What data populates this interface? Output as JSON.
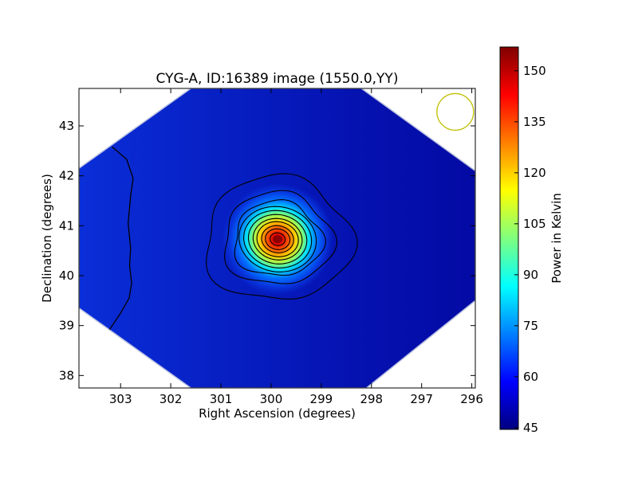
{
  "chart_data": {
    "type": "heatmap",
    "title": "CYG-A, ID:16389 image (1550.0,YY)",
    "xlabel": "Right Ascension (degrees)",
    "ylabel": "Declination (degrees)",
    "xlim": [
      303.83,
      295.93
    ],
    "ylim": [
      37.75,
      43.75
    ],
    "x_ticks": [
      "303",
      "302",
      "301",
      "300",
      "299",
      "298",
      "297",
      "296"
    ],
    "y_ticks": [
      "38",
      "39",
      "40",
      "41",
      "42",
      "43"
    ],
    "colorbar": {
      "label": "Power in Kelvin",
      "range": [
        44.5,
        157
      ],
      "ticks": [
        "45",
        "60",
        "75",
        "90",
        "105",
        "120",
        "135",
        "150"
      ],
      "colormap": "jet"
    },
    "footprint_vertices_deg": [
      [
        301.6,
        43.75
      ],
      [
        298.2,
        43.75
      ],
      [
        295.93,
        42.1
      ],
      [
        295.93,
        39.5
      ],
      [
        298.1,
        37.75
      ],
      [
        301.6,
        37.75
      ],
      [
        303.83,
        39.35
      ],
      [
        303.83,
        42.15
      ]
    ],
    "source": {
      "ra": 299.87,
      "dec": 40.73,
      "peak_kelvin": 157
    },
    "background_kelvin": 48,
    "contour_count": 12,
    "beam": {
      "ra": 296.33,
      "dec": 43.28,
      "color": "#bfbf00"
    },
    "edge_contour_deg": [
      [
        303.17,
        42.58
      ],
      [
        302.88,
        42.33
      ],
      [
        302.75,
        41.95
      ],
      [
        302.8,
        41.6
      ],
      [
        302.85,
        41.05
      ],
      [
        302.8,
        40.55
      ],
      [
        302.82,
        40.2
      ],
      [
        302.78,
        39.85
      ],
      [
        302.83,
        39.55
      ],
      [
        303.0,
        39.25
      ],
      [
        303.22,
        38.92
      ]
    ]
  }
}
